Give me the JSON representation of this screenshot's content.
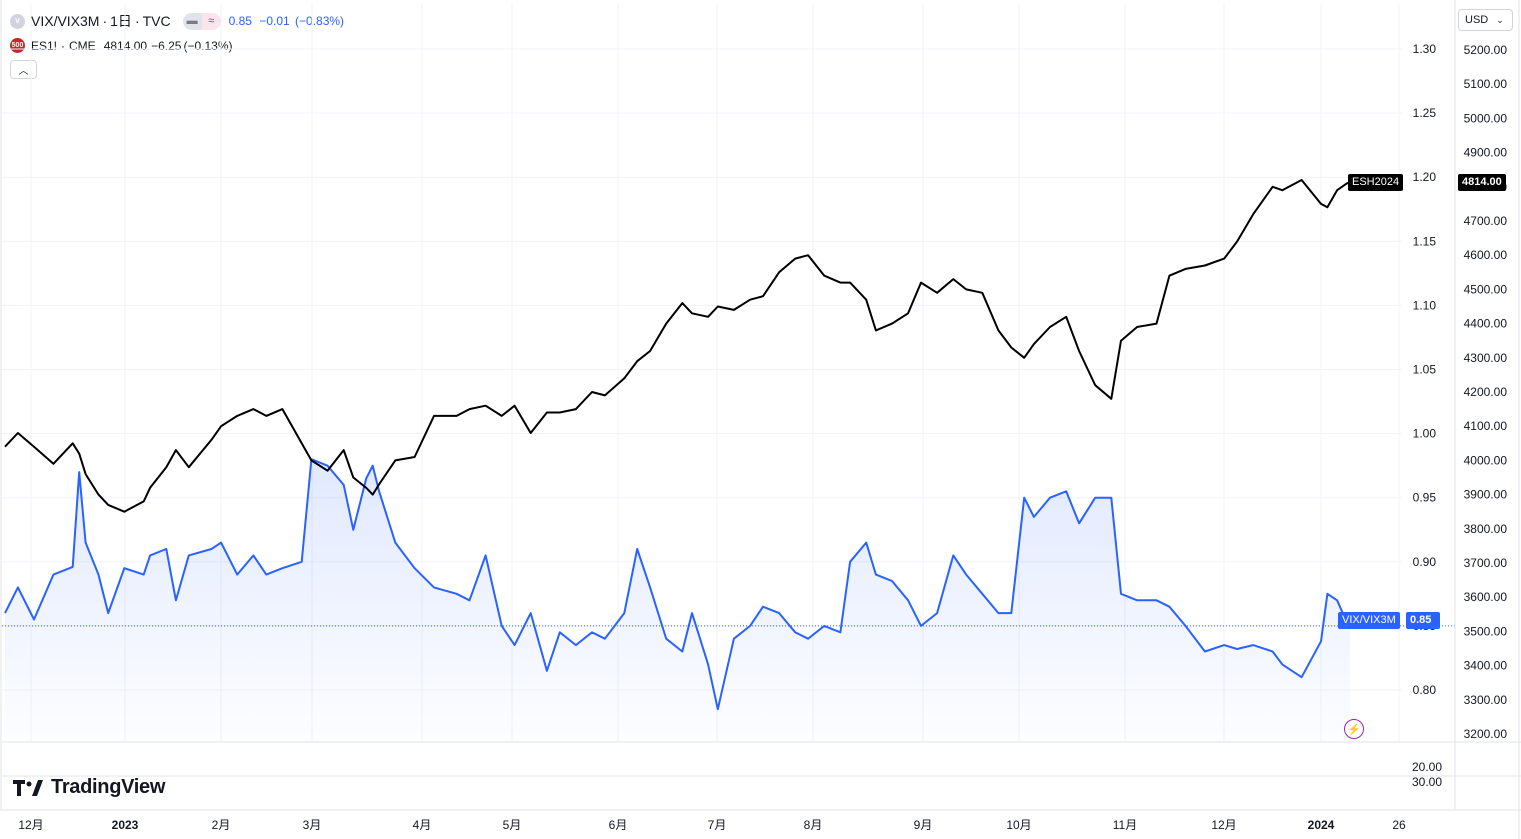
{
  "legend": {
    "main": {
      "icon_text": "V",
      "symbol": "VIX/VIX3M",
      "interval": "1日",
      "exchange": "TVC",
      "value": "0.85",
      "change": "−0.01",
      "change_pct": "(−0.83%)",
      "color": "#2962ff"
    },
    "compare": {
      "icon_text": "500",
      "symbol": "ES1!",
      "exchange": "CME",
      "value": "4814.00",
      "change": "−6.25",
      "change_pct": "(−0.13%)",
      "color": "#000000"
    },
    "collapse_icon": "chevron-up-icon"
  },
  "currency": "USD",
  "price_tags": {
    "esh_label": "ESH2024",
    "esh_value": "4814.00",
    "vix_label": "VIX/VIX3M",
    "vix_value": "0.85"
  },
  "branding": {
    "name": "TradingView"
  },
  "subpane": {
    "labels": [
      "20.00",
      "30.00"
    ]
  },
  "chart_data": {
    "type": "line",
    "title": "",
    "left_y_axis": {
      "ticks": [
        "1.30",
        "1.25",
        "1.20",
        "1.15",
        "1.10",
        "1.05",
        "1.00",
        "0.95",
        "0.90",
        "0.85",
        "0.80"
      ],
      "range": [
        0.76,
        1.315
      ]
    },
    "right_y_axis": {
      "ticks": [
        "5200.00",
        "5100.00",
        "5000.00",
        "4900.00",
        "4800.00",
        "4700.00",
        "4600.00",
        "4500.00",
        "4400.00",
        "4300.00",
        "4200.00",
        "4100.00",
        "4000.00",
        "3900.00",
        "3800.00",
        "3700.00",
        "3600.00",
        "3500.00",
        "3400.00",
        "3300.00",
        "3200.00"
      ],
      "range": [
        3190,
        5250
      ]
    },
    "x_axis": {
      "ticks": [
        "12月",
        "2023",
        "2月",
        "3月",
        "4月",
        "5月",
        "6月",
        "7月",
        "8月",
        "9月",
        "10月",
        "11月",
        "12月",
        "2024",
        "26"
      ],
      "bold_ticks": [
        "2023",
        "2024"
      ]
    },
    "series": [
      {
        "name": "VIX/VIX3M",
        "color": "#2962ff",
        "axis": "left",
        "area": true,
        "last": 0.85,
        "points": [
          [
            "2022-11-21",
            0.86
          ],
          [
            "2022-11-25",
            0.88
          ],
          [
            "2022-11-30",
            0.855
          ],
          [
            "2022-12-06",
            0.89
          ],
          [
            "2022-12-12",
            0.896
          ],
          [
            "2022-12-14",
            0.97
          ],
          [
            "2022-12-16",
            0.915
          ],
          [
            "2022-12-20",
            0.89
          ],
          [
            "2022-12-23",
            0.86
          ],
          [
            "2022-12-28",
            0.895
          ],
          [
            "2023-01-03",
            0.89
          ],
          [
            "2023-01-05",
            0.905
          ],
          [
            "2023-01-10",
            0.91
          ],
          [
            "2023-01-13",
            0.87
          ],
          [
            "2023-01-17",
            0.905
          ],
          [
            "2023-01-24",
            0.91
          ],
          [
            "2023-01-27",
            0.915
          ],
          [
            "2023-02-01",
            0.89
          ],
          [
            "2023-02-06",
            0.905
          ],
          [
            "2023-02-10",
            0.89
          ],
          [
            "2023-02-15",
            0.895
          ],
          [
            "2023-02-21",
            0.9
          ],
          [
            "2023-02-24",
            0.98
          ],
          [
            "2023-03-01",
            0.975
          ],
          [
            "2023-03-06",
            0.96
          ],
          [
            "2023-03-09",
            0.925
          ],
          [
            "2023-03-13",
            0.965
          ],
          [
            "2023-03-15",
            0.975
          ],
          [
            "2023-03-17",
            0.955
          ],
          [
            "2023-03-22",
            0.915
          ],
          [
            "2023-03-28",
            0.895
          ],
          [
            "2023-04-03",
            0.88
          ],
          [
            "2023-04-10",
            0.875
          ],
          [
            "2023-04-14",
            0.87
          ],
          [
            "2023-04-19",
            0.905
          ],
          [
            "2023-04-24",
            0.85
          ],
          [
            "2023-04-28",
            0.835
          ],
          [
            "2023-05-03",
            0.86
          ],
          [
            "2023-05-08",
            0.815
          ],
          [
            "2023-05-12",
            0.845
          ],
          [
            "2023-05-17",
            0.835
          ],
          [
            "2023-05-22",
            0.845
          ],
          [
            "2023-05-26",
            0.84
          ],
          [
            "2023-06-01",
            0.86
          ],
          [
            "2023-06-05",
            0.91
          ],
          [
            "2023-06-09",
            0.88
          ],
          [
            "2023-06-14",
            0.84
          ],
          [
            "2023-06-19",
            0.83
          ],
          [
            "2023-06-22",
            0.86
          ],
          [
            "2023-06-27",
            0.82
          ],
          [
            "2023-06-30",
            0.785
          ],
          [
            "2023-07-05",
            0.84
          ],
          [
            "2023-07-10",
            0.85
          ],
          [
            "2023-07-14",
            0.865
          ],
          [
            "2023-07-19",
            0.86
          ],
          [
            "2023-07-24",
            0.845
          ],
          [
            "2023-07-28",
            0.84
          ],
          [
            "2023-08-02",
            0.85
          ],
          [
            "2023-08-07",
            0.845
          ],
          [
            "2023-08-10",
            0.9
          ],
          [
            "2023-08-15",
            0.915
          ],
          [
            "2023-08-18",
            0.89
          ],
          [
            "2023-08-23",
            0.885
          ],
          [
            "2023-08-28",
            0.87
          ],
          [
            "2023-09-01",
            0.85
          ],
          [
            "2023-09-06",
            0.86
          ],
          [
            "2023-09-11",
            0.905
          ],
          [
            "2023-09-15",
            0.89
          ],
          [
            "2023-09-20",
            0.875
          ],
          [
            "2023-09-25",
            0.86
          ],
          [
            "2023-09-29",
            0.86
          ],
          [
            "2023-10-03",
            0.95
          ],
          [
            "2023-10-06",
            0.935
          ],
          [
            "2023-10-11",
            0.95
          ],
          [
            "2023-10-16",
            0.955
          ],
          [
            "2023-10-20",
            0.93
          ],
          [
            "2023-10-25",
            0.95
          ],
          [
            "2023-10-30",
            0.95
          ],
          [
            "2023-11-02",
            0.875
          ],
          [
            "2023-11-07",
            0.87
          ],
          [
            "2023-11-13",
            0.87
          ],
          [
            "2023-11-17",
            0.865
          ],
          [
            "2023-11-22",
            0.85
          ],
          [
            "2023-11-28",
            0.83
          ],
          [
            "2023-12-04",
            0.835
          ],
          [
            "2023-12-08",
            0.832
          ],
          [
            "2023-12-13",
            0.835
          ],
          [
            "2023-12-19",
            0.83
          ],
          [
            "2023-12-22",
            0.82
          ],
          [
            "2023-12-28",
            0.81
          ],
          [
            "2024-01-03",
            0.838
          ],
          [
            "2024-01-05",
            0.875
          ],
          [
            "2024-01-08",
            0.87
          ],
          [
            "2024-01-11",
            0.853
          ],
          [
            "2024-01-12",
            0.85
          ]
        ]
      },
      {
        "name": "ESH2024",
        "color": "#000000",
        "axis": "right",
        "area": false,
        "last": 4814.0,
        "points": [
          [
            "2022-11-21",
            4040
          ],
          [
            "2022-11-25",
            4080
          ],
          [
            "2022-11-30",
            4040
          ],
          [
            "2022-12-06",
            3990
          ],
          [
            "2022-12-12",
            4050
          ],
          [
            "2022-12-14",
            4020
          ],
          [
            "2022-12-16",
            3960
          ],
          [
            "2022-12-20",
            3900
          ],
          [
            "2022-12-23",
            3870
          ],
          [
            "2022-12-28",
            3850
          ],
          [
            "2023-01-03",
            3880
          ],
          [
            "2023-01-05",
            3920
          ],
          [
            "2023-01-10",
            3980
          ],
          [
            "2023-01-13",
            4030
          ],
          [
            "2023-01-17",
            3980
          ],
          [
            "2023-01-24",
            4060
          ],
          [
            "2023-01-27",
            4100
          ],
          [
            "2023-02-01",
            4130
          ],
          [
            "2023-02-06",
            4150
          ],
          [
            "2023-02-10",
            4130
          ],
          [
            "2023-02-15",
            4150
          ],
          [
            "2023-02-21",
            4050
          ],
          [
            "2023-02-24",
            4000
          ],
          [
            "2023-03-01",
            3970
          ],
          [
            "2023-03-06",
            4030
          ],
          [
            "2023-03-09",
            3950
          ],
          [
            "2023-03-13",
            3920
          ],
          [
            "2023-03-15",
            3900
          ],
          [
            "2023-03-17",
            3930
          ],
          [
            "2023-03-22",
            4000
          ],
          [
            "2023-03-28",
            4010
          ],
          [
            "2023-04-03",
            4130
          ],
          [
            "2023-04-10",
            4130
          ],
          [
            "2023-04-14",
            4150
          ],
          [
            "2023-04-19",
            4160
          ],
          [
            "2023-04-24",
            4130
          ],
          [
            "2023-04-28",
            4160
          ],
          [
            "2023-05-03",
            4080
          ],
          [
            "2023-05-08",
            4140
          ],
          [
            "2023-05-12",
            4140
          ],
          [
            "2023-05-17",
            4150
          ],
          [
            "2023-05-22",
            4200
          ],
          [
            "2023-05-26",
            4190
          ],
          [
            "2023-06-01",
            4240
          ],
          [
            "2023-06-05",
            4290
          ],
          [
            "2023-06-09",
            4320
          ],
          [
            "2023-06-14",
            4400
          ],
          [
            "2023-06-19",
            4460
          ],
          [
            "2023-06-22",
            4430
          ],
          [
            "2023-06-27",
            4420
          ],
          [
            "2023-06-30",
            4450
          ],
          [
            "2023-07-05",
            4440
          ],
          [
            "2023-07-10",
            4470
          ],
          [
            "2023-07-14",
            4480
          ],
          [
            "2023-07-19",
            4550
          ],
          [
            "2023-07-24",
            4590
          ],
          [
            "2023-07-28",
            4600
          ],
          [
            "2023-08-02",
            4540
          ],
          [
            "2023-08-07",
            4520
          ],
          [
            "2023-08-10",
            4520
          ],
          [
            "2023-08-15",
            4470
          ],
          [
            "2023-08-18",
            4380
          ],
          [
            "2023-08-23",
            4400
          ],
          [
            "2023-08-28",
            4430
          ],
          [
            "2023-09-01",
            4520
          ],
          [
            "2023-09-06",
            4490
          ],
          [
            "2023-09-11",
            4530
          ],
          [
            "2023-09-15",
            4500
          ],
          [
            "2023-09-20",
            4490
          ],
          [
            "2023-09-25",
            4380
          ],
          [
            "2023-09-29",
            4330
          ],
          [
            "2023-10-03",
            4300
          ],
          [
            "2023-10-06",
            4340
          ],
          [
            "2023-10-11",
            4390
          ],
          [
            "2023-10-16",
            4420
          ],
          [
            "2023-10-20",
            4320
          ],
          [
            "2023-10-25",
            4220
          ],
          [
            "2023-10-30",
            4180
          ],
          [
            "2023-11-02",
            4350
          ],
          [
            "2023-11-07",
            4390
          ],
          [
            "2023-11-13",
            4400
          ],
          [
            "2023-11-17",
            4540
          ],
          [
            "2023-11-22",
            4560
          ],
          [
            "2023-11-28",
            4570
          ],
          [
            "2023-12-04",
            4590
          ],
          [
            "2023-12-08",
            4640
          ],
          [
            "2023-12-13",
            4720
          ],
          [
            "2023-12-19",
            4800
          ],
          [
            "2023-12-22",
            4790
          ],
          [
            "2023-12-28",
            4820
          ],
          [
            "2024-01-03",
            4750
          ],
          [
            "2024-01-05",
            4740
          ],
          [
            "2024-01-08",
            4790
          ],
          [
            "2024-01-11",
            4810
          ],
          [
            "2024-01-12",
            4814
          ]
        ]
      }
    ],
    "grid": true,
    "legend_position": "top-left",
    "last_value_line": {
      "series": "VIX/VIX3M",
      "value": 0.85
    }
  }
}
